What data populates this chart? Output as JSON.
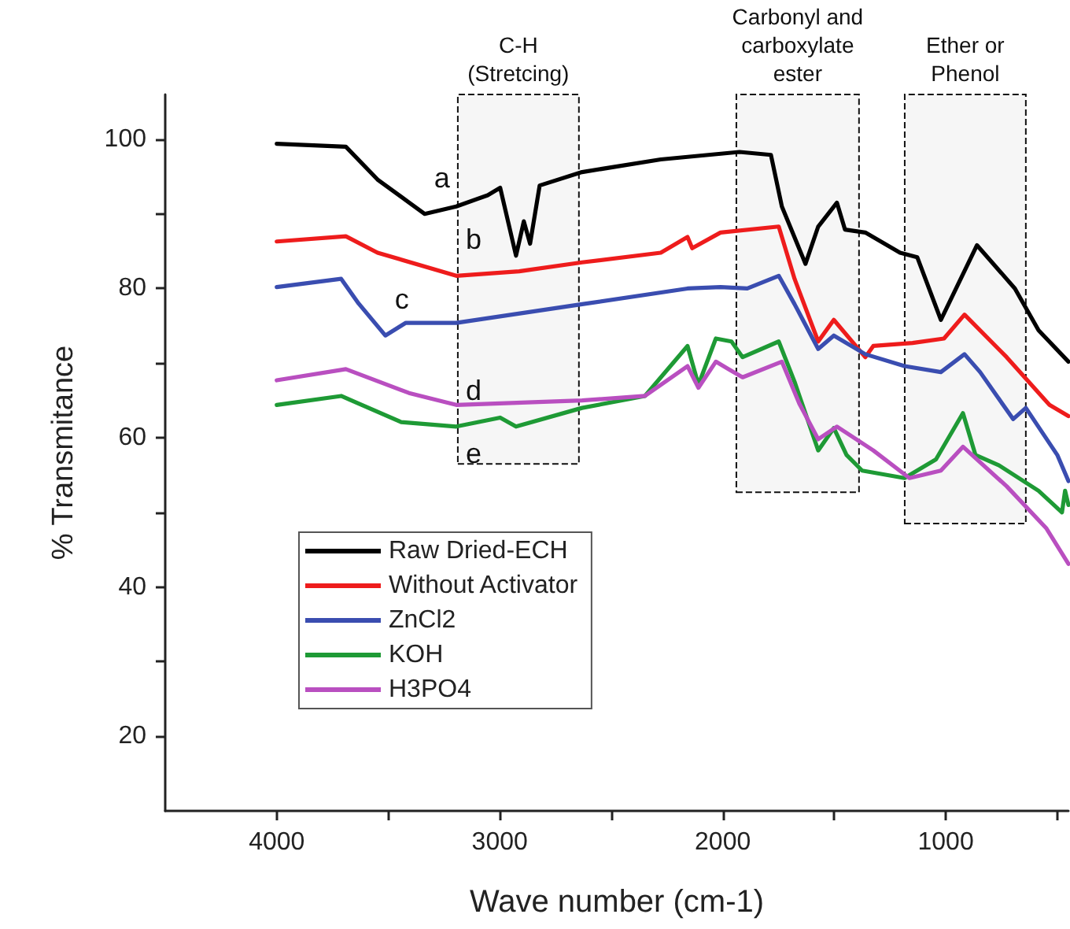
{
  "chart_data": {
    "type": "line",
    "xlabel": "Wave number (cm-1)",
    "ylabel": "% Transmitance",
    "xlim": [
      4500,
      450
    ],
    "xticks": [
      4000,
      3000,
      2000,
      1000,
      {
        "value": 3500,
        "label": null
      },
      {
        "value": 2500,
        "label": null
      },
      {
        "value": 1500,
        "label": null
      },
      {
        "value": 500,
        "label": null
      }
    ],
    "ylim": [
      10,
      106
    ],
    "yticks": [
      20,
      40,
      60,
      80,
      100,
      {
        "value": 30,
        "label": null
      },
      {
        "value": 50,
        "label": null
      },
      {
        "value": 70,
        "label": null
      },
      {
        "value": 90,
        "label": null
      }
    ],
    "grid": false,
    "legend": "bottom left",
    "marker": "none",
    "line_style": "solid",
    "series": [
      {
        "name": "Raw Dried-ECH",
        "color": "#000000",
        "x": [
          4000,
          3690,
          3548,
          3337,
          3195,
          3054,
          2998,
          2927,
          2892,
          2864,
          2821,
          2631,
          2278,
          1925,
          1784,
          1735,
          1629,
          1572,
          1488,
          1452,
          1361,
          1205,
          1128,
          1022,
          860,
          690,
          584,
          450
        ],
        "values": [
          99.4,
          99,
          94.6,
          90,
          91,
          92.5,
          93.5,
          84.4,
          89,
          86,
          93.8,
          95.6,
          97.3,
          98.3,
          97.9,
          91,
          83.3,
          88.3,
          91.5,
          87.9,
          87.5,
          84.8,
          84.2,
          75.8,
          85.8,
          80,
          74.4,
          70.2
        ]
      },
      {
        "name": "Without Activator",
        "color": "#ee1c1c",
        "x": [
          4000,
          3690,
          3548,
          3195,
          2913,
          2631,
          2278,
          2158,
          2137,
          2010,
          1749,
          1678,
          1572,
          1502,
          1361,
          1325,
          1149,
          1008,
          916,
          727,
          535,
          450
        ],
        "values": [
          86.3,
          87,
          84.8,
          81.7,
          82.3,
          83.5,
          84.8,
          86.9,
          85.4,
          87.5,
          88.3,
          81.3,
          72.9,
          75.8,
          70.8,
          72.3,
          72.7,
          73.3,
          76.5,
          70.8,
          64.4,
          62.9
        ]
      },
      {
        "name": "ZnCl2",
        "color": "#3a4db0",
        "x": [
          4000,
          3711,
          3633,
          3513,
          3421,
          3195,
          2631,
          2158,
          2010,
          1890,
          1749,
          1678,
          1572,
          1502,
          1361,
          1185,
          1022,
          916,
          846,
          698,
          641,
          500,
          450
        ],
        "values": [
          80.2,
          81.3,
          78,
          73.7,
          75.4,
          75.4,
          77.9,
          80,
          80.2,
          80,
          81.7,
          77.9,
          71.9,
          73.7,
          71.2,
          69.6,
          68.8,
          71.2,
          68.8,
          62.5,
          64,
          57.7,
          54.2
        ]
      },
      {
        "name": "KOH",
        "color": "#1e9a35",
        "x": [
          4000,
          3711,
          3442,
          3195,
          2998,
          2927,
          2631,
          2349,
          2158,
          2109,
          2031,
          1961,
          1911,
          1749,
          1678,
          1572,
          1502,
          1445,
          1375,
          1185,
          1044,
          923,
          867,
          761,
          584,
          479,
          465,
          450
        ],
        "values": [
          64.4,
          65.6,
          62.1,
          61.5,
          62.7,
          61.5,
          64,
          65.6,
          72.3,
          67.1,
          73.3,
          72.9,
          70.8,
          72.9,
          67.5,
          58.3,
          61.3,
          57.7,
          55.6,
          54.6,
          57.1,
          63.3,
          57.7,
          56.3,
          52.9,
          50,
          52.9,
          51
        ]
      },
      {
        "name": "H3PO4",
        "color": "#b94fc0",
        "x": [
          4000,
          3690,
          3407,
          3195,
          2631,
          2349,
          2158,
          2109,
          2031,
          1975,
          1911,
          1735,
          1657,
          1572,
          1488,
          1325,
          1163,
          1022,
          923,
          727,
          550,
          450
        ],
        "values": [
          67.7,
          69.2,
          66,
          64.4,
          65,
          65.6,
          69.6,
          66.7,
          70.2,
          69.2,
          68.1,
          70.2,
          64.6,
          59.8,
          61.5,
          58.3,
          54.6,
          55.6,
          58.8,
          53.5,
          47.9,
          43.1
        ]
      }
    ],
    "bands": [
      {
        "axis": "x",
        "from": 3188,
        "to": 2645,
        "label": "C-H\n(Stretcing)"
      },
      {
        "axis": "x",
        "from": 1939,
        "to": 1389,
        "label": "Carbonyl and\ncarboxylate\nester"
      },
      {
        "axis": "x",
        "from": 1184,
        "to": 641,
        "label": "Ether or\nPhenol"
      }
    ],
    "annotations": [
      "a",
      "b",
      "c",
      "d",
      "e"
    ]
  }
}
